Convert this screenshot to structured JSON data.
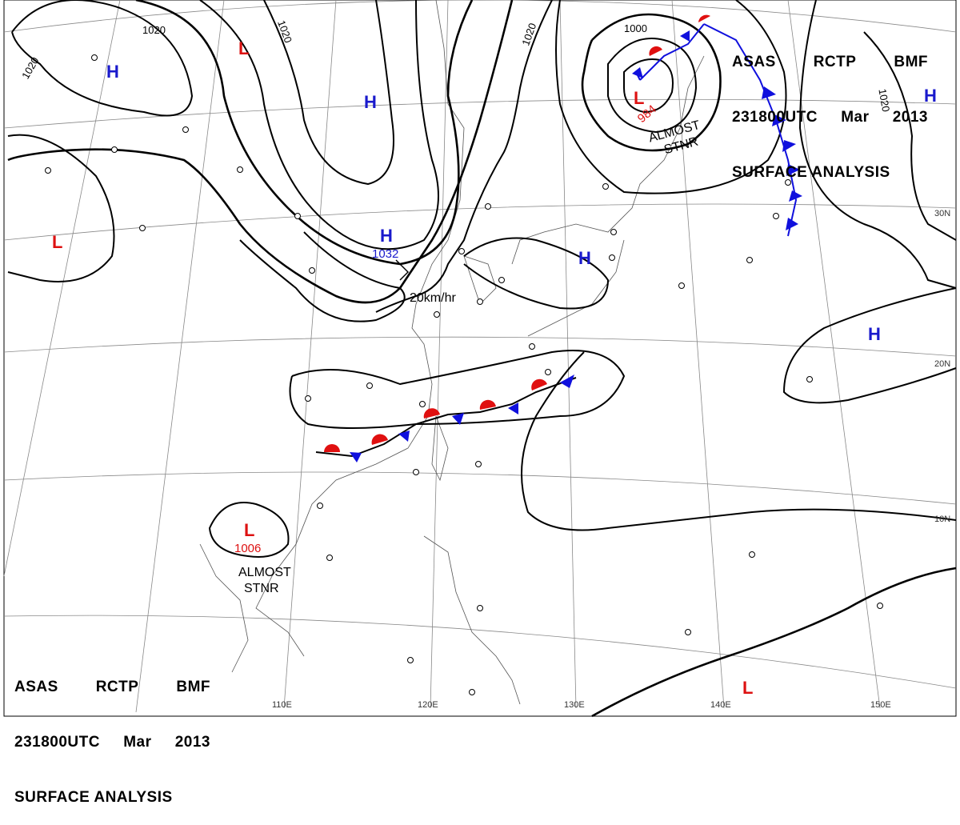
{
  "header": {
    "agency": "ASAS",
    "station": "RCTP",
    "unit": "BMF",
    "time": "231800UTC",
    "month": "Mar",
    "year": "2013",
    "product": "SURFACE ANALYSIS"
  },
  "isobar_labels": [
    "1020",
    "1020",
    "1020",
    "1000",
    "1020",
    "1020"
  ],
  "pressure_centers": [
    {
      "type": "H",
      "color": "#1a1acc",
      "value": ""
    },
    {
      "type": "H",
      "color": "#1a1acc",
      "value": ""
    },
    {
      "type": "H",
      "color": "#1a1acc",
      "value": "1032"
    },
    {
      "type": "H",
      "color": "#1a1acc",
      "value": ""
    },
    {
      "type": "H",
      "color": "#1a1acc",
      "value": ""
    },
    {
      "type": "H",
      "color": "#1a1acc",
      "value": ""
    },
    {
      "type": "L",
      "color": "#dd1111",
      "value": ""
    },
    {
      "type": "L",
      "color": "#dd1111",
      "value": ""
    },
    {
      "type": "L",
      "color": "#dd1111",
      "value": "984"
    },
    {
      "type": "L",
      "color": "#dd1111",
      "value": "1006"
    },
    {
      "type": "L",
      "color": "#dd1111",
      "value": ""
    }
  ],
  "annotations": [
    {
      "lines": [
        "ALMOST",
        "STNR"
      ]
    },
    {
      "lines": [
        "ALMOST",
        "STNR"
      ]
    },
    {
      "lines": [
        "20km/hr"
      ]
    }
  ],
  "longitude_labels": [
    "110E",
    "120E",
    "130E",
    "140E",
    "150E"
  ],
  "latitude_labels": [
    "30N",
    "20N",
    "10N"
  ],
  "colors": {
    "high": "#1a1acc",
    "low": "#dd1111",
    "warm_front": "#e01010",
    "cold_front": "#1010dd"
  }
}
